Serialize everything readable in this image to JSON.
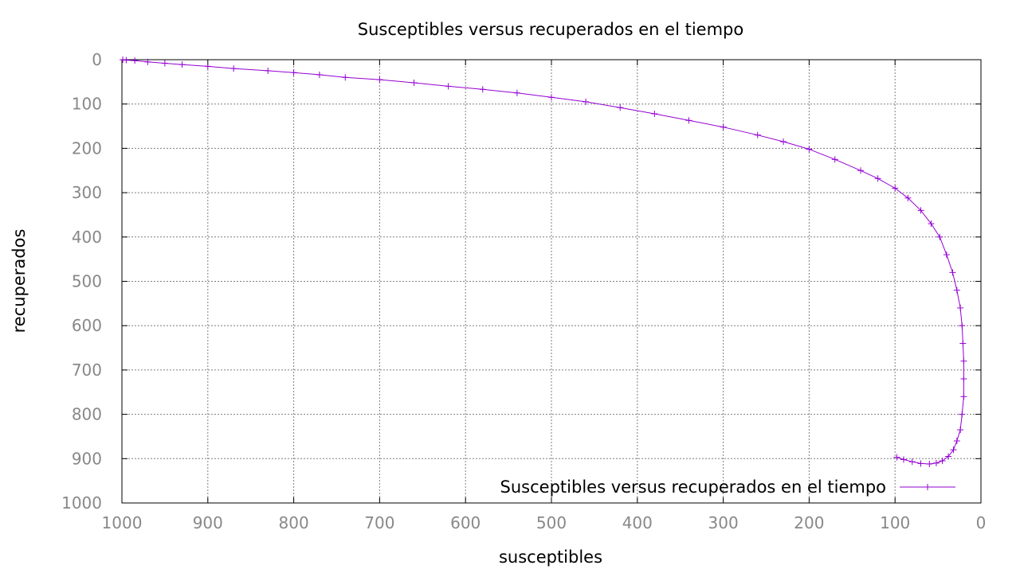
{
  "chart_data": {
    "type": "line",
    "title": "Susceptibles versus recuperados en el tiempo",
    "xlabel": "susceptibles",
    "ylabel": "recuperados",
    "xlim": [
      1000,
      0
    ],
    "ylim": [
      0,
      1000
    ],
    "x_reversed": true,
    "y_reversed": true,
    "grid": true,
    "legend_position": "bottom-right",
    "x_ticks": [
      "1000",
      "900",
      "800",
      "700",
      "600",
      "500",
      "400",
      "300",
      "200",
      "100",
      "0"
    ],
    "y_ticks": [
      "0",
      "100",
      "200",
      "300",
      "400",
      "500",
      "600",
      "700",
      "800",
      "900",
      "1000"
    ],
    "series": [
      {
        "name": "Susceptibles versus recuperados en el tiempo",
        "color": "#9400d3",
        "marker": "plus",
        "points": [
          [
            999,
            0
          ],
          [
            995,
            1
          ],
          [
            985,
            2
          ],
          [
            970,
            5
          ],
          [
            950,
            8
          ],
          [
            930,
            11
          ],
          [
            900,
            15
          ],
          [
            870,
            20
          ],
          [
            830,
            25
          ],
          [
            800,
            29
          ],
          [
            770,
            34
          ],
          [
            740,
            40
          ],
          [
            700,
            45
          ],
          [
            660,
            52
          ],
          [
            620,
            60
          ],
          [
            580,
            67
          ],
          [
            540,
            75
          ],
          [
            500,
            85
          ],
          [
            460,
            95
          ],
          [
            420,
            108
          ],
          [
            380,
            122
          ],
          [
            340,
            137
          ],
          [
            300,
            152
          ],
          [
            260,
            170
          ],
          [
            230,
            185
          ],
          [
            200,
            202
          ],
          [
            170,
            225
          ],
          [
            140,
            250
          ],
          [
            120,
            268
          ],
          [
            100,
            290
          ],
          [
            85,
            312
          ],
          [
            70,
            340
          ],
          [
            58,
            370
          ],
          [
            48,
            400
          ],
          [
            40,
            440
          ],
          [
            33,
            480
          ],
          [
            28,
            520
          ],
          [
            24,
            560
          ],
          [
            22,
            600
          ],
          [
            21,
            640
          ],
          [
            20,
            680
          ],
          [
            20,
            720
          ],
          [
            20,
            760
          ],
          [
            22,
            800
          ],
          [
            24,
            835
          ],
          [
            28,
            860
          ],
          [
            32,
            880
          ],
          [
            38,
            895
          ],
          [
            45,
            905
          ],
          [
            52,
            910
          ],
          [
            60,
            912
          ],
          [
            70,
            911
          ],
          [
            80,
            907
          ],
          [
            90,
            902
          ],
          [
            98,
            897
          ]
        ]
      }
    ]
  }
}
